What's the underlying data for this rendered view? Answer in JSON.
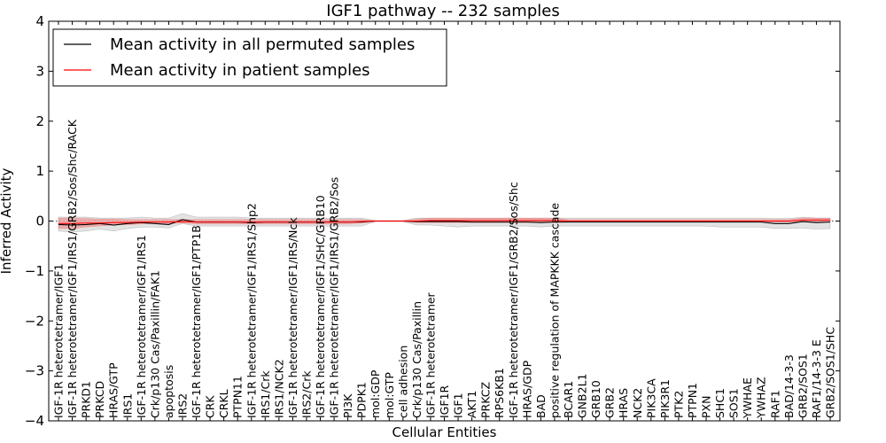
{
  "chart_data": {
    "type": "line",
    "title": "IGF1 pathway -- 232 samples",
    "xlabel": "Cellular Entities",
    "ylabel": "Inferred Activity",
    "ylim": [
      -4,
      4
    ],
    "yticks": [
      "−4",
      "−3",
      "−2",
      "−1",
      "0",
      "1",
      "2",
      "3",
      "4"
    ],
    "legend_position": "top-left",
    "categories": [
      "IGF-1R heterotetramer/IGF1",
      "IGF-1R heterotetramer/IGF1/IRS1/GRB2/Sos/Shc/RACK",
      "PRKD1",
      "PRKCD",
      "HRAS/GTP",
      "IRS1",
      "IGF-1R heterotetramer/IGF1/IRS1",
      "Crk/p130 Cas/Paxillin/FAK1",
      "apoptosis",
      "IRS2",
      "IGF-1R heterotetramer/IGF1/PTP1B",
      "CRK",
      "CRKL",
      "PTPN11",
      "IGF-1R heterotetramer/IGF1/IRS1/Shp2",
      "IRS1/Crk",
      "IRS1/NCK2",
      "IGF-1R heterotetramer/IGF1/IRS/Nck",
      "IRS2/Crk",
      "IGF-1R heterotetramer/IGF1/SHC/GRB10",
      "IGF-1R heterotetramer/IGF1/IRS1/GRB2/Sos",
      "PI3K",
      "PDPK1",
      "mol:GDP",
      "mol:GTP",
      "cell adhesion",
      "Crk/p130 Cas/Paxillin",
      "IGF-1R heterotetramer",
      "IGF1R",
      "IGF1",
      "AKT1",
      "PRKCZ",
      "RPS6KB1",
      "IGF-1R heterotetramer/IGF1/GRB2/Sos/Shc",
      "HRAS/GDP",
      "BAD",
      "positive regulation of MAPKKK cascade",
      "BCAR1",
      "GNB2L1",
      "GRB10",
      "GRB2",
      "HRAS",
      "NCK2",
      "PIK3CA",
      "PIK3R1",
      "PTK2",
      "PTPN1",
      "PXN",
      "SHC1",
      "SOS1",
      "YWHAE",
      "YWHAZ",
      "RAF1",
      "BAD/14-3-3",
      "GRB2/SOS1",
      "RAF1/14-3-3 E",
      "GRB2/SOS1/SHC"
    ],
    "series": [
      {
        "name": "Mean activity in all permuted samples",
        "color": "#000000",
        "values": [
          -0.07,
          -0.08,
          -0.07,
          -0.05,
          -0.08,
          -0.05,
          -0.03,
          -0.05,
          -0.07,
          0.03,
          -0.02,
          -0.02,
          -0.02,
          -0.02,
          -0.03,
          -0.02,
          -0.02,
          -0.02,
          -0.02,
          -0.02,
          -0.02,
          -0.02,
          -0.02,
          0,
          0,
          0,
          -0.01,
          -0.01,
          -0.01,
          -0.01,
          -0.02,
          -0.02,
          -0.02,
          -0.02,
          -0.02,
          -0.03,
          -0.02,
          -0.02,
          -0.02,
          -0.02,
          -0.02,
          -0.02,
          -0.02,
          -0.02,
          -0.02,
          -0.02,
          -0.02,
          -0.02,
          -0.02,
          -0.02,
          -0.02,
          -0.02,
          -0.05,
          -0.05,
          -0.01,
          -0.03,
          -0.02
        ],
        "band_low": [
          -0.2,
          -0.22,
          -0.2,
          -0.16,
          -0.2,
          -0.15,
          -0.12,
          -0.12,
          -0.14,
          -0.05,
          -0.1,
          -0.1,
          -0.1,
          -0.1,
          -0.1,
          -0.1,
          -0.1,
          -0.1,
          -0.1,
          -0.1,
          -0.1,
          -0.1,
          -0.1,
          -0.01,
          -0.01,
          -0.01,
          -0.08,
          -0.08,
          -0.1,
          -0.12,
          -0.1,
          -0.1,
          -0.1,
          -0.1,
          -0.1,
          -0.12,
          -0.1,
          -0.1,
          -0.1,
          -0.1,
          -0.1,
          -0.1,
          -0.1,
          -0.1,
          -0.1,
          -0.1,
          -0.1,
          -0.1,
          -0.12,
          -0.12,
          -0.12,
          -0.12,
          -0.15,
          -0.15,
          -0.14,
          -0.16,
          -0.15
        ],
        "band_high": [
          0.08,
          0.08,
          0.08,
          0.06,
          0.06,
          0.06,
          0.08,
          0.06,
          0.06,
          0.15,
          0.08,
          0.08,
          0.08,
          0.08,
          0.06,
          0.06,
          0.06,
          0.06,
          0.06,
          0.06,
          0.06,
          0.06,
          0.06,
          0.01,
          0.01,
          0.01,
          0.06,
          0.06,
          0.06,
          0.06,
          0.06,
          0.06,
          0.06,
          0.06,
          0.06,
          0.06,
          0.06,
          0.06,
          0.06,
          0.06,
          0.06,
          0.06,
          0.06,
          0.06,
          0.06,
          0.06,
          0.06,
          0.06,
          0.06,
          0.06,
          0.06,
          0.06,
          0.05,
          0.05,
          0.08,
          0.06,
          0.06
        ],
        "band_color": "#d9d9d9"
      },
      {
        "name": "Mean activity in patient samples",
        "color": "#ff0000",
        "values": [
          -0.05,
          -0.05,
          -0.04,
          -0.04,
          -0.03,
          -0.03,
          -0.02,
          -0.02,
          -0.02,
          -0.01,
          -0.02,
          -0.02,
          -0.02,
          -0.02,
          -0.02,
          -0.02,
          -0.02,
          -0.02,
          -0.02,
          -0.02,
          -0.02,
          -0.02,
          -0.01,
          0,
          0,
          0,
          0,
          0.01,
          0.01,
          0.01,
          0.01,
          0.01,
          0.01,
          0.01,
          0.01,
          0.01,
          0.01,
          0,
          0,
          0,
          0,
          0,
          0,
          0,
          0,
          0,
          0,
          0,
          0,
          0,
          0,
          0,
          0,
          0,
          0.02,
          0.02,
          0.02
        ],
        "band_low": [
          -0.15,
          -0.15,
          -0.12,
          -0.1,
          -0.08,
          -0.07,
          -0.06,
          -0.05,
          -0.05,
          -0.04,
          -0.06,
          -0.06,
          -0.06,
          -0.06,
          -0.06,
          -0.06,
          -0.06,
          -0.06,
          -0.06,
          -0.06,
          -0.06,
          -0.06,
          -0.04,
          -0.01,
          -0.01,
          -0.01,
          -0.03,
          -0.03,
          -0.03,
          -0.03,
          -0.03,
          -0.03,
          -0.03,
          -0.03,
          -0.03,
          -0.03,
          -0.03,
          -0.02,
          -0.02,
          -0.02,
          -0.02,
          -0.02,
          -0.02,
          -0.02,
          -0.02,
          -0.02,
          -0.02,
          -0.02,
          -0.02,
          -0.02,
          -0.02,
          -0.02,
          -0.02,
          -0.02,
          -0.02,
          -0.02,
          -0.02
        ],
        "band_high": [
          0.06,
          0.06,
          0.05,
          0.04,
          0.04,
          0.03,
          0.03,
          0.03,
          0.03,
          0.03,
          0.03,
          0.03,
          0.03,
          0.03,
          0.03,
          0.03,
          0.03,
          0.03,
          0.03,
          0.03,
          0.03,
          0.03,
          0.03,
          0.01,
          0.01,
          0.01,
          0.04,
          0.06,
          0.06,
          0.06,
          0.06,
          0.06,
          0.06,
          0.06,
          0.06,
          0.06,
          0.06,
          0.03,
          0.03,
          0.03,
          0.03,
          0.03,
          0.03,
          0.03,
          0.03,
          0.03,
          0.03,
          0.03,
          0.03,
          0.03,
          0.03,
          0.03,
          0.03,
          0.03,
          0.06,
          0.06,
          0.06
        ],
        "band_color": "#f08080"
      }
    ]
  }
}
